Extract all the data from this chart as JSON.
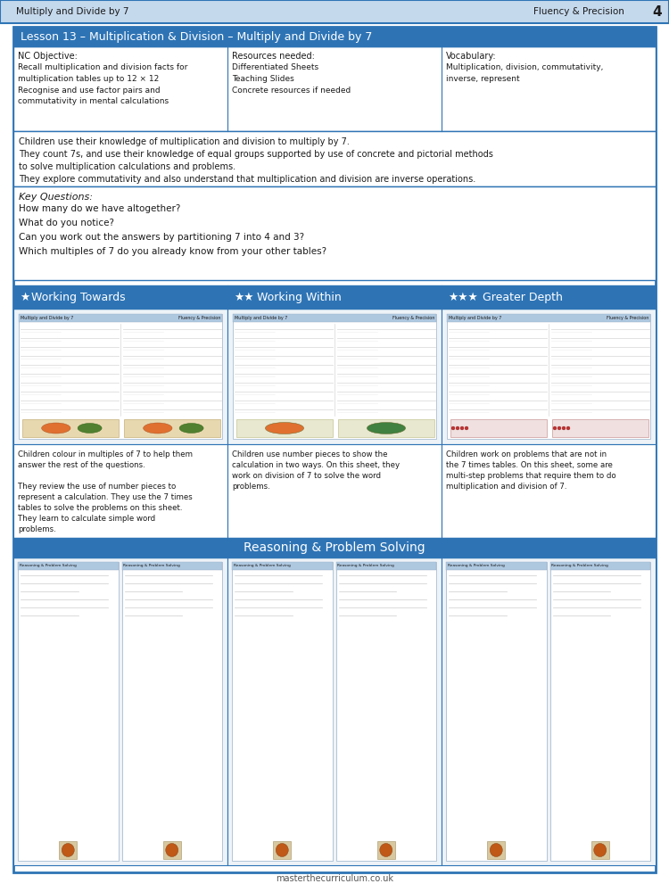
{
  "page_title_left": "Multiply and Divide by 7",
  "page_title_right": "Fluency & Precision",
  "page_number": "4",
  "lesson_title": "Lesson 13 – Multiplication & Division – Multiply and Divide by 7",
  "nc_objective_title": "NC Objective:",
  "nc_objective_lines": [
    "Recall multiplication and division facts for",
    "multiplication tables up to 12 × 12",
    "Recognise and use factor pairs and",
    "commutativity in mental calculations"
  ],
  "resources_title": "Resources needed:",
  "resources_lines": [
    "Differentiated Sheets",
    "Teaching Slides",
    "Concrete resources if needed"
  ],
  "vocabulary_title": "Vocabulary:",
  "vocabulary_lines": [
    "Multiplication, division, commutativity,",
    "inverse, represent"
  ],
  "description_lines": [
    "Children use their knowledge of multiplication and division to multiply by 7.",
    "They count 7s, and use their knowledge of equal groups supported by use of concrete and pictorial methods",
    "to solve multiplication calculations and problems.",
    "They explore commutativity and also understand that multiplication and division are inverse operations."
  ],
  "key_questions_title": "Key Questions:",
  "key_questions_lines": [
    "How many do we have altogether?",
    "What do you notice?",
    "Can you work out the answers by partitioning 7 into 4 and 3?",
    "Which multiples of 7 do you already know from your other tables?"
  ],
  "working_towards": "Working Towards",
  "working_within": "Working Within",
  "greater_depth": "Greater Depth",
  "wt_desc_lines": [
    "Children colour in multiples of 7 to help them",
    "answer the rest of the questions.",
    "",
    "They review the use of number pieces to",
    "represent a calculation. They use the 7 times",
    "tables to solve the problems on this sheet.",
    "They learn to calculate simple word",
    "problems."
  ],
  "ww_desc_lines": [
    "Children use number pieces to show the",
    "calculation in two ways. On this sheet, they",
    "work on division of 7 to solve the word",
    "problems."
  ],
  "gd_desc_lines": [
    "Children work on problems that are not in",
    "the 7 times tables. On this sheet, some are",
    "multi-step problems that require them to do",
    "multiplication and division of 7."
  ],
  "reasoning_title": "Reasoning & Problem Solving",
  "footer": "masterthecurriculum.co.uk",
  "header_bg": "#c5d9ed",
  "lesson_header_bg": "#2e74b5",
  "lesson_header_text": "#ffffff",
  "star_header_bg": "#2e74b5",
  "star_header_text": "#ffffff",
  "reasoning_header_bg": "#2e74b5",
  "reasoning_header_text": "#ffffff",
  "text_dark": "#1a1a1a",
  "outer_border": "#2e74b5",
  "thumb_header_bg": "#aec8e0",
  "thumb_bg": "#dce8f5"
}
